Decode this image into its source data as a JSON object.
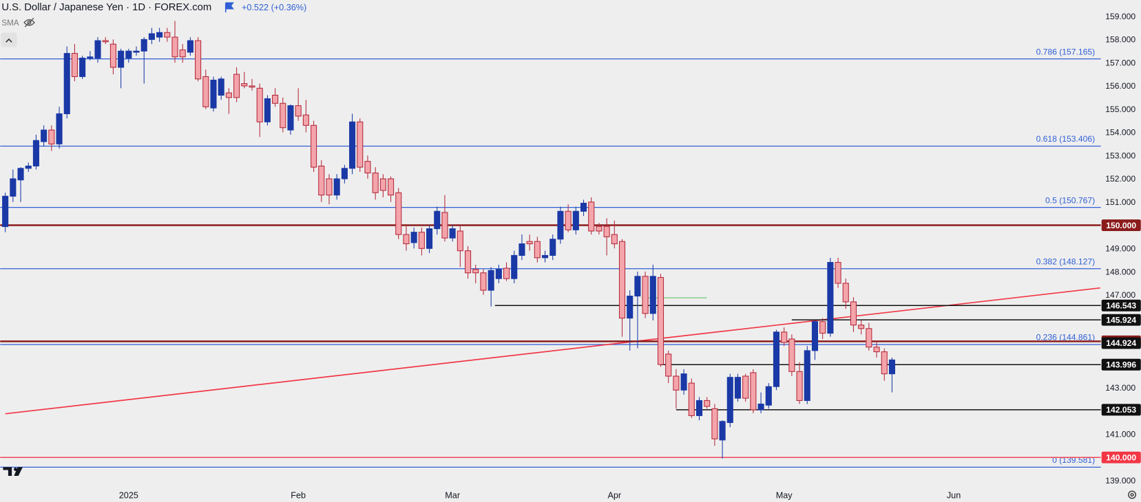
{
  "chart_data": {
    "type": "candlestick",
    "title": "U.S. Dollar / Japanese Yen · 1D · FOREX.com",
    "change": "+0.522 (+0.36%)",
    "indicator": "SMA",
    "up_color": "#1a39a6",
    "down_color": "#b3283a",
    "down_fill": "#f4a5ab",
    "categories": [
      null,
      null,
      null,
      null,
      null,
      null,
      null,
      null,
      null,
      null,
      null,
      null,
      null,
      null,
      null,
      null,
      "2025",
      null,
      null,
      null,
      null,
      null,
      null,
      null,
      null,
      null,
      null,
      null,
      null,
      null,
      null,
      null,
      null,
      null,
      null,
      null,
      null,
      null,
      "Feb",
      null,
      null,
      null,
      null,
      null,
      null,
      null,
      null,
      null,
      null,
      null,
      null,
      null,
      null,
      null,
      null,
      null,
      null,
      null,
      "Mar",
      null,
      null,
      null,
      null,
      null,
      null,
      null,
      null,
      null,
      null,
      null,
      null,
      null,
      null,
      null,
      null,
      null,
      null,
      null,
      null,
      "Apr",
      null,
      null,
      null,
      null,
      null,
      null,
      null,
      null,
      null,
      null,
      null,
      null,
      null,
      null,
      null,
      null,
      null,
      null,
      null,
      null,
      null,
      "May",
      null,
      null,
      null,
      null,
      null,
      null,
      null,
      null,
      null,
      null,
      null,
      null,
      null,
      null,
      null,
      null,
      null,
      null,
      null,
      null,
      null,
      "Jun"
    ],
    "open": [
      149.94,
      151.25,
      151.95,
      152.45,
      152.55,
      153.6,
      154.1,
      153.5,
      154.8,
      157.4,
      156.4,
      157.2,
      157.2,
      157.95,
      157.8,
      156.8,
      157.2,
      157.45,
      157.5,
      158.0,
      158.1,
      158.3,
      158.1,
      157.55,
      157.45,
      157.95,
      156.4,
      155.05,
      155.6,
      155.7,
      156.5,
      156.1,
      156.0,
      155.9,
      154.45,
      155.6,
      155.25,
      154.1,
      155.15,
      154.75,
      154.3,
      152.55,
      152.0,
      151.3,
      152.0,
      152.45,
      154.45,
      152.75,
      152.25,
      152.0,
      152.0,
      151.4,
      149.6,
      149.25,
      149.7,
      149.0,
      149.85,
      150.55,
      149.45,
      149.75,
      148.9,
      148.1,
      147.95,
      147.2,
      147.7,
      148.15,
      147.7,
      148.7,
      149.3,
      149.3,
      148.6,
      148.7,
      149.4,
      150.6,
      149.8,
      150.6,
      151.0,
      149.95,
      149.95,
      149.6,
      149.3,
      146.0,
      146.95,
      147.8,
      146.2,
      147.75,
      144.45,
      143.5,
      142.9,
      143.2,
      141.8,
      142.45,
      142.1,
      140.75,
      141.5,
      142.55,
      143.5,
      143.65,
      142.05,
      142.25,
      143.05,
      145.4,
      145.1,
      143.7,
      142.45,
      144.6,
      145.85,
      145.35,
      148.4,
      147.5,
      146.7,
      145.7,
      145.55,
      144.75,
      144.55,
      143.6,
      null,
      null,
      null,
      null,
      null,
      null,
      null,
      null
    ],
    "high": [
      151.4,
      152.4,
      152.5,
      152.7,
      153.9,
      154.3,
      154.3,
      155.1,
      157.7,
      157.8,
      157.3,
      157.5,
      158.1,
      158.1,
      158.0,
      157.6,
      157.6,
      157.7,
      158.1,
      158.5,
      158.5,
      158.5,
      158.8,
      157.8,
      158.1,
      158.1,
      156.7,
      156.4,
      156.4,
      155.9,
      156.8,
      156.6,
      156.3,
      156.1,
      155.6,
      155.9,
      155.5,
      155.2,
      155.9,
      155.4,
      154.5,
      152.8,
      152.2,
      152.2,
      152.6,
      154.8,
      154.6,
      153.0,
      152.5,
      152.2,
      152.1,
      151.6,
      150.0,
      149.9,
      149.9,
      150.0,
      150.8,
      151.3,
      150.0,
      150.0,
      149.1,
      148.3,
      148.1,
      148.2,
      148.3,
      148.4,
      148.9,
      149.6,
      149.6,
      149.5,
      148.9,
      149.6,
      150.8,
      150.9,
      150.8,
      151.1,
      151.2,
      150.1,
      150.3,
      150.2,
      149.4,
      147.2,
      148.0,
      148.0,
      148.3,
      147.9,
      144.6,
      143.8,
      143.8,
      143.4,
      142.6,
      142.6,
      142.3,
      141.6,
      143.6,
      143.6,
      143.6,
      143.8,
      142.8,
      143.2,
      145.5,
      145.6,
      145.3,
      144.1,
      144.8,
      145.9,
      146.0,
      148.6,
      148.6,
      147.7,
      146.9,
      145.9,
      145.8,
      145.0,
      144.7,
      144.3,
      null,
      null,
      null,
      null,
      null,
      null,
      null,
      null
    ],
    "low": [
      149.7,
      151.0,
      151.0,
      152.3,
      152.4,
      153.4,
      153.2,
      153.3,
      154.6,
      156.2,
      156.3,
      157.1,
      157.0,
      157.8,
      156.5,
      155.9,
      157.0,
      157.3,
      156.1,
      157.8,
      157.9,
      157.9,
      157.0,
      157.0,
      157.3,
      156.2,
      155.0,
      154.9,
      155.4,
      154.8,
      155.3,
      155.9,
      155.8,
      153.8,
      154.3,
      155.1,
      154.0,
      153.9,
      154.5,
      154.0,
      152.3,
      151.0,
      150.9,
      151.1,
      151.8,
      152.2,
      152.3,
      152.0,
      151.1,
      151.2,
      151.0,
      149.4,
      148.9,
      149.0,
      148.7,
      148.8,
      149.6,
      149.3,
      149.3,
      148.2,
      147.7,
      147.5,
      147.0,
      146.5,
      147.5,
      147.6,
      147.5,
      148.5,
      148.9,
      148.4,
      148.4,
      148.5,
      149.2,
      149.7,
      149.6,
      150.4,
      149.6,
      149.6,
      148.7,
      149.0,
      145.2,
      144.6,
      144.7,
      146.0,
      145.9,
      143.9,
      143.2,
      142.1,
      142.7,
      141.7,
      141.6,
      142.1,
      140.5,
      139.95,
      141.3,
      142.4,
      142.4,
      141.9,
      141.9,
      142.1,
      142.9,
      144.8,
      143.5,
      142.3,
      142.3,
      144.2,
      145.1,
      145.2,
      147.3,
      146.4,
      145.4,
      145.3,
      144.6,
      144.3,
      143.3,
      142.8,
      null,
      null,
      null,
      null,
      null,
      null,
      null,
      null
    ],
    "close": [
      151.25,
      152.0,
      152.45,
      152.55,
      153.65,
      154.1,
      153.5,
      154.8,
      157.4,
      156.4,
      157.2,
      157.25,
      157.95,
      157.9,
      156.8,
      157.5,
      157.5,
      157.5,
      158.0,
      158.25,
      158.3,
      158.1,
      157.25,
      157.25,
      157.95,
      156.3,
      155.1,
      156.25,
      156.3,
      155.5,
      155.5,
      156.0,
      155.95,
      154.45,
      155.45,
      155.25,
      154.2,
      155.15,
      154.7,
      154.3,
      152.5,
      151.3,
      151.3,
      152.0,
      152.45,
      154.45,
      152.5,
      152.25,
      151.4,
      151.5,
      151.3,
      149.6,
      149.2,
      149.7,
      149.0,
      149.85,
      150.6,
      149.45,
      149.85,
      148.9,
      147.95,
      147.95,
      147.2,
      148.05,
      148.1,
      147.7,
      148.7,
      149.2,
      149.2,
      148.6,
      148.7,
      149.4,
      150.6,
      149.8,
      150.6,
      150.95,
      149.75,
      149.75,
      149.5,
      149.2,
      146.0,
      146.95,
      147.8,
      146.2,
      147.8,
      144.0,
      143.5,
      142.9,
      143.6,
      141.8,
      142.45,
      142.2,
      140.8,
      141.55,
      143.45,
      143.45,
      142.55,
      142.05,
      142.3,
      143.05,
      145.4,
      144.95,
      143.7,
      142.45,
      144.6,
      145.85,
      145.35,
      148.4,
      147.5,
      146.7,
      145.7,
      145.55,
      144.75,
      144.55,
      143.6,
      144.2,
      null,
      null,
      null,
      null,
      null,
      null,
      null,
      null
    ],
    "ylim": [
      138.8,
      159.7
    ],
    "yticks": [
      {
        "value": 139,
        "label": "139.000"
      },
      {
        "value": 141,
        "label": "141.000"
      },
      {
        "value": 143,
        "label": "143.000"
      },
      {
        "value": 147,
        "label": "147.000"
      },
      {
        "value": 148,
        "label": "148.000"
      },
      {
        "value": 149,
        "label": "149.000"
      },
      {
        "value": 151,
        "label": "151.000"
      },
      {
        "value": 152,
        "label": "152.000"
      },
      {
        "value": 153,
        "label": "153.000"
      },
      {
        "value": 154,
        "label": "154.000"
      },
      {
        "value": 155,
        "label": "155.000"
      },
      {
        "value": 156,
        "label": "156.000"
      },
      {
        "value": 157,
        "label": "157.000"
      },
      {
        "value": 158,
        "label": "158.000"
      },
      {
        "value": 159,
        "label": "159.000"
      }
    ],
    "fib_color": "#2f5fd6",
    "fib_levels": [
      {
        "value": 157.165,
        "label": "0.786 (157.165)"
      },
      {
        "value": 153.406,
        "label": "0.618 (153.406)"
      },
      {
        "value": 150.767,
        "label": "0.5 (150.767)"
      },
      {
        "value": 148.127,
        "label": "0.382 (148.127)"
      },
      {
        "value": 144.861,
        "label": "0.236 (144.861)"
      },
      {
        "value": 139.581,
        "label": "0 (139.581)"
      }
    ],
    "price_levels": [
      {
        "value": 150.0,
        "label": "150.000",
        "color": "#8b1c1c",
        "line": true
      },
      {
        "value": 146.543,
        "label": "146.543",
        "color": "#111111",
        "line": true,
        "from": 63.5
      },
      {
        "value": 145.924,
        "label": "145.924",
        "color": "#111111",
        "line": true,
        "from": 102
      },
      {
        "value": 145.0,
        "label": "145.000",
        "color": "#8b1c1c",
        "line": true
      },
      {
        "value": 144.924,
        "label": "144.924",
        "color": "#111111",
        "line": false
      },
      {
        "value": 143.996,
        "label": "143.996",
        "color": "#111111",
        "line": true,
        "from": 85
      },
      {
        "value": 142.053,
        "label": "142.053",
        "color": "#111111",
        "line": true,
        "from": 87
      },
      {
        "value": 140.0,
        "label": "140.000",
        "color": "#f23645",
        "line": true
      }
    ],
    "trend_lines": [
      {
        "x": [
          0,
          142
        ],
        "y": [
          141.88,
          147.3
        ],
        "color": "#f23645"
      },
      {
        "x": [
          82.5,
          91
        ],
        "y": [
          146.875,
          146.875
        ],
        "color": "#8fd18f"
      }
    ]
  }
}
